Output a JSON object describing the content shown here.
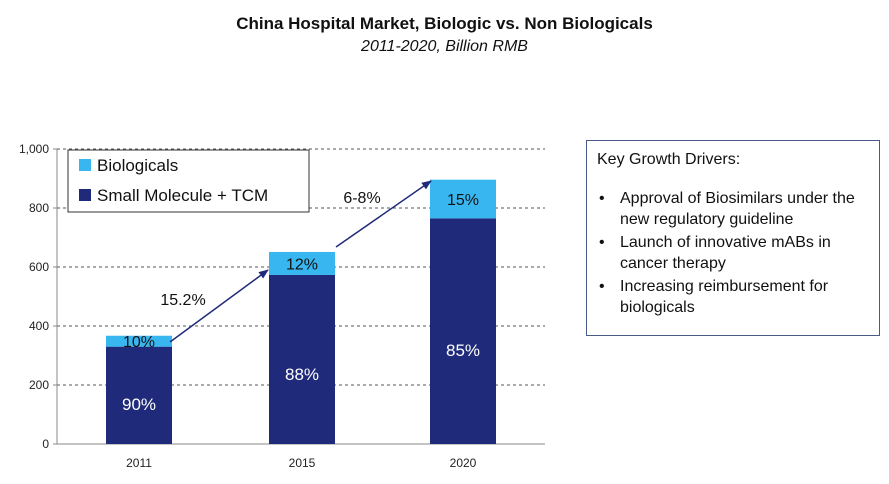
{
  "chart_data": {
    "type": "bar",
    "stacked": true,
    "title": "China Hospital Market, Biologic vs. Non Biologicals",
    "subtitle": "2011-2020, Billion RMB",
    "categories": [
      "2011",
      "2015",
      "2020"
    ],
    "series": [
      {
        "name": "Small Molecule + TCM",
        "color": "#1f2b7a",
        "values": [
          330,
          573,
          765
        ],
        "labels": [
          "90%",
          "88%",
          "85%"
        ]
      },
      {
        "name": "Biologicals",
        "color": "#38b6f0",
        "values": [
          37,
          78,
          131
        ],
        "labels": [
          "10%",
          "12%",
          "15%"
        ]
      }
    ],
    "ylim": [
      0,
      1000
    ],
    "yticks": [
      0,
      200,
      400,
      600,
      800,
      1000
    ],
    "ytick_labels": [
      "0",
      "200",
      "400",
      "600",
      "800",
      "1,000"
    ],
    "grid": true,
    "legend_position": "top-left",
    "annotations": [
      {
        "text": "15.2%",
        "from": "2011",
        "to": "2015"
      },
      {
        "text": "6-8%",
        "from": "2015",
        "to": "2020"
      }
    ]
  },
  "drivers": {
    "heading": "Key Growth Drivers:",
    "bullet": "•",
    "items": [
      "Approval of Biosimilars under the new regulatory guideline",
      "Launch of innovative mABs in cancer therapy",
      "Increasing reimbursement for biologicals"
    ]
  }
}
